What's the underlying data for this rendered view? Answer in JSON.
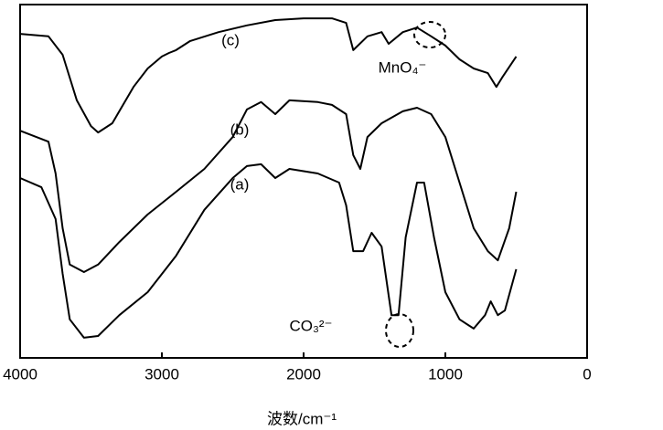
{
  "chart_data": {
    "type": "line",
    "x_label": "波数/cm⁻¹",
    "xlim": [
      4000,
      0
    ],
    "xticks": [
      4000,
      3000,
      2000,
      1000,
      0
    ],
    "ylim": [
      0,
      100
    ],
    "annotations": [
      "MnO₄⁻",
      "CO₃²⁻"
    ],
    "series": [
      {
        "name": "(c)",
        "color": "#000000",
        "x": [
          4000,
          3800,
          3700,
          3600,
          3500,
          3450,
          3350,
          3200,
          3100,
          3000,
          2950,
          2900,
          2800,
          2600,
          2400,
          2200,
          2000,
          1800,
          1700,
          1650,
          1550,
          1450,
          1400,
          1300,
          1200,
          1100,
          1000,
          900,
          800,
          700,
          640,
          600,
          500
        ],
        "values": [
          91.7,
          91.0,
          85.8,
          72.9,
          65.6,
          63.8,
          66.4,
          76.7,
          81.9,
          85.3,
          86.3,
          87.1,
          89.7,
          92.2,
          94.1,
          95.6,
          96.1,
          96.1,
          94.8,
          87.1,
          91.0,
          92.2,
          88.9,
          92.2,
          93.5,
          91.0,
          88.4,
          84.5,
          81.9,
          80.6,
          76.7,
          79.3,
          85.3
        ]
      },
      {
        "name": "(b)",
        "color": "#000000",
        "x": [
          4000,
          3800,
          3750,
          3700,
          3650,
          3550,
          3450,
          3300,
          3100,
          2900,
          2700,
          2500,
          2400,
          2300,
          2200,
          2100,
          1900,
          1800,
          1700,
          1650,
          1600,
          1550,
          1450,
          1300,
          1200,
          1100,
          1000,
          900,
          800,
          700,
          630,
          550,
          500
        ],
        "values": [
          64.3,
          61.2,
          52.2,
          36.7,
          26.4,
          24.3,
          26.4,
          32.8,
          40.6,
          47.0,
          53.5,
          62.5,
          70.3,
          72.4,
          69.0,
          72.9,
          72.4,
          71.6,
          69.0,
          57.4,
          53.5,
          62.5,
          66.4,
          69.8,
          70.8,
          69.0,
          62.5,
          49.6,
          36.7,
          30.2,
          27.6,
          36.7,
          47.0
        ]
      },
      {
        "name": "(a)",
        "color": "#000000",
        "x": [
          4000,
          3850,
          3750,
          3700,
          3650,
          3550,
          3450,
          3300,
          3100,
          2900,
          2700,
          2500,
          2400,
          2300,
          2200,
          2100,
          1900,
          1750,
          1700,
          1650,
          1580,
          1520,
          1450,
          1380,
          1330,
          1280,
          1200,
          1150,
          1080,
          1000,
          900,
          800,
          720,
          680,
          630,
          580,
          500
        ],
        "values": [
          50.9,
          48.3,
          39.3,
          23.8,
          10.9,
          5.7,
          6.2,
          12.1,
          18.6,
          28.9,
          41.9,
          50.9,
          54.3,
          54.8,
          50.9,
          53.5,
          52.2,
          49.6,
          43.2,
          30.2,
          30.2,
          35.4,
          31.5,
          12.1,
          12.1,
          34.1,
          49.6,
          49.6,
          34.1,
          18.6,
          10.9,
          8.3,
          12.1,
          16.0,
          12.1,
          13.4,
          25.1
        ]
      }
    ]
  }
}
